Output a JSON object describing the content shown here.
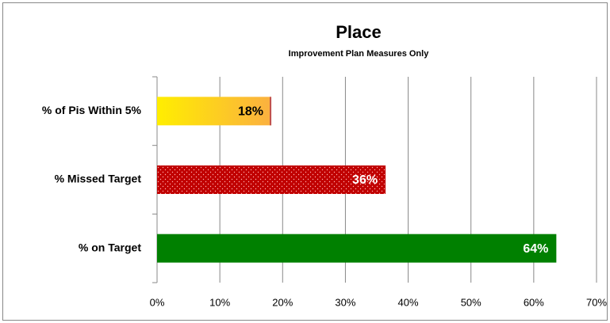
{
  "chart_data": {
    "type": "bar",
    "orientation": "horizontal",
    "title": "Place",
    "subtitle": "Improvement Plan Measures Only",
    "categories": [
      "% of Pis Within 5%",
      "% Missed Target",
      "% on Target"
    ],
    "values": [
      18.2,
      36.4,
      63.6
    ],
    "value_labels": [
      "18%",
      "36%",
      "64%"
    ],
    "colors": [
      "#fbb040",
      "#c00000",
      "#008000"
    ],
    "bar_styles": [
      "gradient",
      "dotted",
      "solid"
    ],
    "value_label_colors": [
      "#000000",
      "#ffffff",
      "#ffffff"
    ],
    "xlim": [
      0,
      70
    ],
    "xticks": [
      {
        "value": 0,
        "label": "0%"
      },
      {
        "value": 10,
        "label": "10%"
      },
      {
        "value": 20,
        "label": "20%"
      },
      {
        "value": 30,
        "label": "30%"
      },
      {
        "value": 40,
        "label": "40%"
      },
      {
        "value": 50,
        "label": "50%"
      },
      {
        "value": 60,
        "label": "60%"
      },
      {
        "value": 70,
        "label": "70%"
      }
    ],
    "grid": true
  }
}
